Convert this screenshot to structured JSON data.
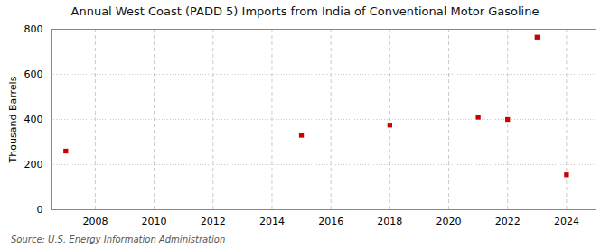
{
  "chart_data": {
    "type": "scatter",
    "title": "Annual West Coast (PADD 5) Imports from India of Conventional Motor Gasoline",
    "ylabel": "Thousand Barrels",
    "annotations": [
      "Source: U.S. Energy Information Administration"
    ],
    "x": [
      2007,
      2015,
      2018,
      2021,
      2022,
      2023,
      2024
    ],
    "values": [
      260,
      330,
      375,
      410,
      400,
      765,
      155
    ],
    "color": "#cc0000",
    "marker": "square",
    "xlim": [
      2006.5,
      2025.0
    ],
    "ylim": [
      0,
      800
    ],
    "xticks": [
      2008,
      2010,
      2012,
      2014,
      2016,
      2018,
      2020,
      2022,
      2024
    ],
    "yticks": [
      0,
      200,
      400,
      600,
      800
    ],
    "grid": true
  }
}
